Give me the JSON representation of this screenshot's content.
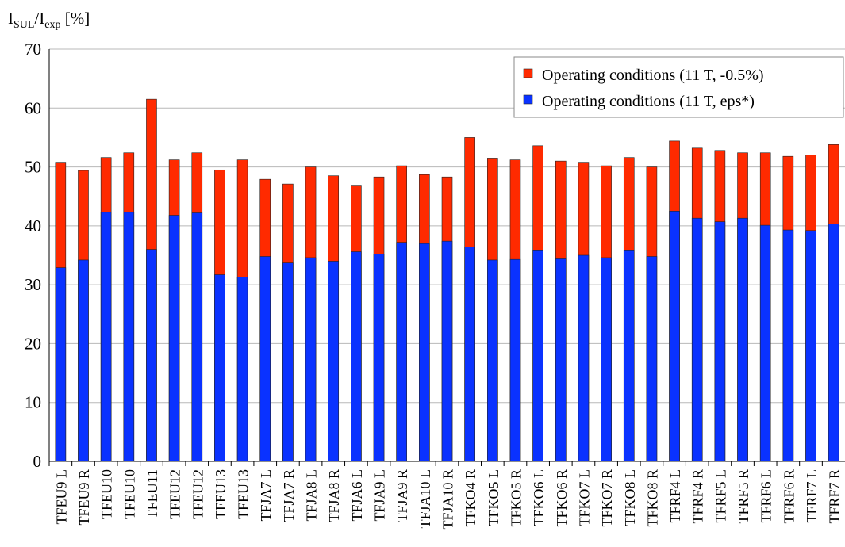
{
  "chart_data": {
    "type": "bar",
    "overlap": true,
    "y_label": [
      "I",
      "SUL",
      "/I",
      "exp",
      " [%]"
    ],
    "categories": [
      "TFEU9 L",
      "TFEU9 R",
      "TFEU10",
      "TFEU10",
      "TFEU11",
      "TFEU12",
      "TFEU12",
      "TFEU13",
      "TFEU13",
      "TFJA7 L",
      "TFJA7 R",
      "TFJA8 L",
      "TFJA8 R",
      "TFJA6 L",
      "TFJA9 L",
      "TFJA9 R",
      "TFJA10 L",
      "TFJA10 R",
      "TFKO4 R",
      "TFKO5 L",
      "TFKO5 R",
      "TFKO6 L",
      "TFKO6 R",
      "TFKO7 L",
      "TFKO7 R",
      "TFKO8 L",
      "TFKO8 R",
      "TFRF4 L",
      "TFRF4 R",
      "TFRF5 L",
      "TFRF5 R",
      "TFRF6 L",
      "TFRF6 R",
      "TFRF7 L",
      "TFRF7 R"
    ],
    "series": [
      {
        "name": "Operating conditions (11 T, -0.5%)",
        "color": "#ff2a00",
        "values": [
          50.8,
          49.4,
          51.6,
          52.4,
          61.5,
          51.2,
          52.4,
          49.5,
          51.2,
          47.9,
          47.1,
          50,
          48.5,
          46.9,
          48.3,
          50.2,
          48.7,
          48.3,
          55,
          51.5,
          51.2,
          53.6,
          51,
          50.8,
          50.2,
          51.6,
          50,
          54.4,
          53.2,
          52.8,
          52.4,
          52.4,
          51.8,
          52,
          53.8
        ]
      },
      {
        "name": "Operating conditions (11 T, eps*)",
        "color": "#0a32ff",
        "values": [
          32.9,
          34.2,
          42.3,
          42.3,
          36,
          41.8,
          42.2,
          31.7,
          31.3,
          34.8,
          33.7,
          34.6,
          34,
          35.6,
          35.2,
          37.2,
          37,
          37.4,
          36.4,
          34.2,
          34.3,
          35.9,
          34.4,
          35,
          34.6,
          35.9,
          34.8,
          42.5,
          41.3,
          40.7,
          41.3,
          40.1,
          39.3,
          39.2,
          40.3
        ]
      }
    ],
    "ylim": [
      0,
      70
    ],
    "yticks": [
      0,
      10,
      20,
      30,
      40,
      50,
      60,
      70
    ],
    "grid": true,
    "legend": "top-right"
  }
}
